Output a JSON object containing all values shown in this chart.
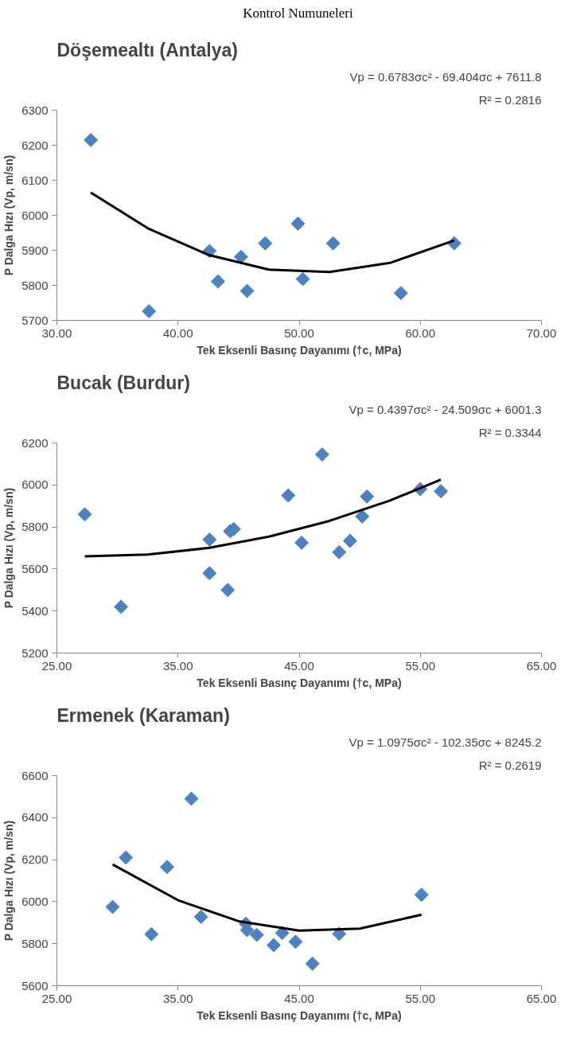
{
  "chart_data": [
    {
      "type": "scatter",
      "title": "Döşemealtı (Antalya)",
      "xlabel": "Tek Eksenli Basınç Dayanımı (†c, MPa)",
      "ylabel": "P Dalga Hızı (Vp, m/sn)",
      "annotations": [
        "Kontrol Numuneleri",
        "Vp = 0.6783σc² - 69.404σc + 7611.8",
        "R² = 0.2816"
      ],
      "grid": false,
      "xlim": [
        30,
        70
      ],
      "xticks": [
        {
          "value": 30,
          "label": "30.00"
        },
        {
          "value": 40,
          "label": "40.00"
        },
        {
          "value": 50,
          "label": "50.00"
        },
        {
          "value": 60,
          "label": "60.00"
        },
        {
          "value": 70,
          "label": "70.00"
        }
      ],
      "ylim": [
        5700,
        6300
      ],
      "yticks": [
        5700,
        5800,
        5900,
        6000,
        6100,
        6200,
        6300
      ],
      "series": [
        {
          "marker": "diamond",
          "color": "#4f81bd",
          "x": [
            32.8,
            37.6,
            42.6,
            43.3,
            45.2,
            45.7,
            47.2,
            49.9,
            50.3,
            52.8,
            58.4,
            62.8
          ],
          "values": [
            6215,
            5726,
            5898,
            5811,
            5881,
            5784,
            5920,
            5976,
            5818,
            5920,
            5778,
            5920
          ]
        },
        {
          "type": "line",
          "color": "#000000",
          "x": [
            32.8,
            37.5,
            42.5,
            47.5,
            52.5,
            57.5,
            62.8
          ],
          "values": [
            6065,
            5963,
            5887,
            5845,
            5838,
            5864,
            5928
          ],
          "marker": "none"
        }
      ]
    },
    {
      "type": "scatter",
      "title": "Bucak (Burdur)",
      "xlabel": "Tek Eksenli Basınç Dayanımı (†c, MPa)",
      "ylabel": "P Dalga Hızı (Vp, m/sn)",
      "annotations": [
        "Vp = 0.4397σc² - 24.509σc + 6001.3",
        "R² = 0.3344"
      ],
      "grid": false,
      "xlim": [
        25,
        65
      ],
      "xticks": [
        {
          "value": 25,
          "label": "25.00"
        },
        {
          "value": 35,
          "label": "35.00"
        },
        {
          "value": 45,
          "label": "45.00"
        },
        {
          "value": 55,
          "label": "55.00"
        },
        {
          "value": 65,
          "label": "65.00"
        }
      ],
      "ylim": [
        5200,
        6200
      ],
      "yticks": [
        5200,
        5400,
        5600,
        5800,
        6000,
        6200
      ],
      "series": [
        {
          "marker": "diamond",
          "color": "#4f81bd",
          "x": [
            27.3,
            30.3,
            37.6,
            37.6,
            39.1,
            39.3,
            39.6,
            44.1,
            45.2,
            46.9,
            48.3,
            49.2,
            50.2,
            50.6,
            55.0,
            56.7
          ],
          "values": [
            5860,
            5420,
            5740,
            5580,
            5500,
            5780,
            5790,
            5950,
            5725,
            6145,
            5680,
            5734,
            5850,
            5945,
            5980,
            5970
          ]
        },
        {
          "type": "line",
          "color": "#000000",
          "x": [
            27.3,
            32.5,
            37.5,
            42.5,
            47.5,
            52.5,
            56.7
          ],
          "values": [
            5660,
            5669,
            5700,
            5754,
            5829,
            5926,
            6025
          ],
          "marker": "none"
        }
      ]
    },
    {
      "type": "scatter",
      "title": "Ermenek (Karaman)",
      "xlabel": "Tek Eksenli Basınç Dayanımı (†c, MPa)",
      "ylabel": "P Dalga Hızı (Vp, m/sn)",
      "annotations": [
        "Vp = 1.0975σc² - 102.35σc + 8245.2",
        "R² = 0.2619"
      ],
      "grid": false,
      "xlim": [
        25,
        65
      ],
      "xticks": [
        {
          "value": 25,
          "label": "25.00"
        },
        {
          "value": 35,
          "label": "35.00"
        },
        {
          "value": 45,
          "label": "45.00"
        },
        {
          "value": 55,
          "label": "55.00"
        },
        {
          "value": 65,
          "label": "65.00"
        }
      ],
      "ylim": [
        5600,
        6600
      ],
      "yticks": [
        5600,
        5800,
        6000,
        6200,
        6400,
        6600
      ],
      "series": [
        {
          "marker": "diamond",
          "color": "#4f81bd",
          "x": [
            29.6,
            30.7,
            32.8,
            34.1,
            36.1,
            36.9,
            40.6,
            40.7,
            41.5,
            42.9,
            43.6,
            44.7,
            46.1,
            48.3,
            55.1
          ],
          "values": [
            5975,
            6210,
            5845,
            6165,
            6490,
            5928,
            5895,
            5865,
            5842,
            5793,
            5851,
            5809,
            5705,
            5847,
            6033
          ]
        },
        {
          "type": "line",
          "color": "#000000",
          "x": [
            29.6,
            35,
            40,
            45,
            50,
            55.1
          ],
          "values": [
            6177,
            6007,
            5907,
            5862,
            5872,
            5938
          ],
          "marker": "none"
        }
      ]
    }
  ]
}
